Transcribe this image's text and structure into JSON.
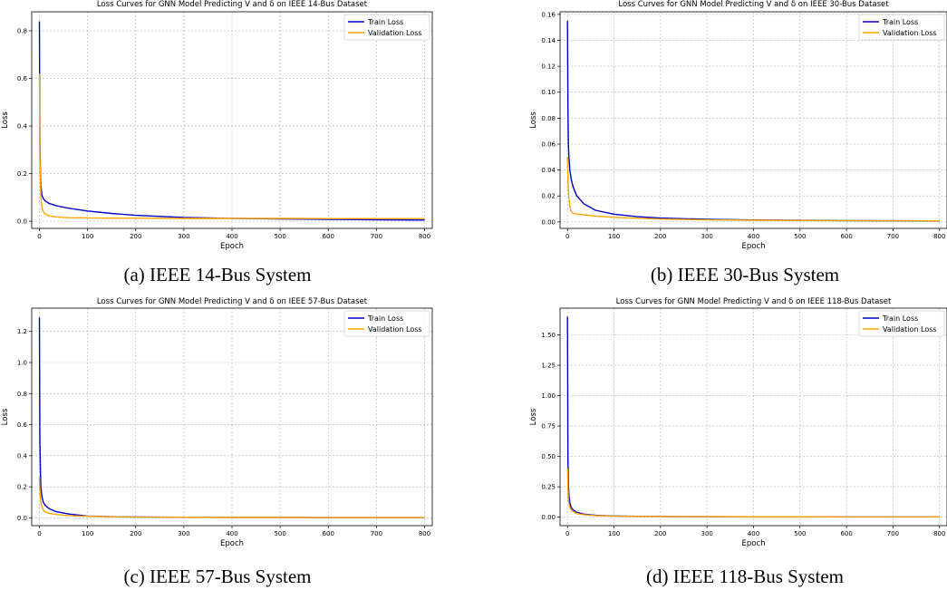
{
  "figure": {
    "panels": [
      {
        "caption": "(a) IEEE 14-Bus System",
        "chart_data": {
          "type": "line",
          "title": "Loss Curves for GNN Model Predicting V and δ on IEEE 14-Bus Dataset",
          "xlabel": "Epoch",
          "ylabel": "Loss",
          "xlim": [
            -16,
            816
          ],
          "ylim": [
            -0.03,
            0.88
          ],
          "xticks": [
            0,
            100,
            200,
            300,
            400,
            500,
            600,
            700,
            800
          ],
          "yticks": [
            0.0,
            0.2,
            0.4,
            0.6,
            0.8
          ],
          "ytick_labels": [
            "0.0",
            "0.2",
            "0.4",
            "0.6",
            "0.8"
          ],
          "grid": true,
          "legend_position": "top-right",
          "x": [
            0,
            1,
            2,
            3,
            5,
            8,
            12,
            20,
            35,
            60,
            100,
            150,
            200,
            300,
            400,
            500,
            600,
            700,
            800
          ],
          "series": [
            {
              "name": "Train Loss",
              "color": "#0000cc",
              "values": [
                0.84,
                0.35,
                0.2,
                0.15,
                0.11,
                0.095,
                0.085,
                0.075,
                0.065,
                0.055,
                0.043,
                0.033,
                0.025,
                0.016,
                0.012,
                0.01,
                0.008,
                0.006,
                0.005
              ]
            },
            {
              "name": "Validation Loss",
              "color": "#ffa500",
              "values": [
                0.62,
                0.28,
                0.16,
                0.1,
                0.06,
                0.04,
                0.03,
                0.022,
                0.018,
                0.015,
                0.014,
                0.013,
                0.013,
                0.012,
                0.012,
                0.012,
                0.011,
                0.011,
                0.011
              ]
            }
          ]
        }
      },
      {
        "caption": "(b) IEEE 30-Bus System",
        "chart_data": {
          "type": "line",
          "title": "Loss Curves for GNN Model Predicting V and δ on IEEE 30-Bus Dataset",
          "xlabel": "Epoch",
          "ylabel": "Loss",
          "xlim": [
            -16,
            816
          ],
          "ylim": [
            -0.005,
            0.162
          ],
          "xticks": [
            0,
            100,
            200,
            300,
            400,
            500,
            600,
            700,
            800
          ],
          "yticks": [
            0.0,
            0.02,
            0.04,
            0.06,
            0.08,
            0.1,
            0.12,
            0.14,
            0.16
          ],
          "ytick_labels": [
            "0.00",
            "0.02",
            "0.04",
            "0.06",
            "0.08",
            "0.10",
            "0.12",
            "0.14",
            "0.16"
          ],
          "grid": true,
          "legend_position": "top-right",
          "x": [
            0,
            1,
            2,
            3,
            5,
            8,
            12,
            20,
            35,
            60,
            100,
            150,
            200,
            300,
            400,
            500,
            600,
            700,
            800
          ],
          "series": [
            {
              "name": "Train Loss",
              "color": "#0000cc",
              "values": [
                0.155,
                0.09,
                0.06,
                0.05,
                0.04,
                0.033,
                0.027,
                0.02,
                0.014,
                0.009,
                0.006,
                0.004,
                0.003,
                0.002,
                0.0015,
                0.0012,
                0.001,
                0.0009,
                0.0008
              ]
            },
            {
              "name": "Validation Loss",
              "color": "#ffa500",
              "values": [
                0.05,
                0.035,
                0.025,
                0.018,
                0.012,
                0.008,
                0.0065,
                0.006,
                0.0055,
                0.0045,
                0.0035,
                0.0028,
                0.0022,
                0.0016,
                0.0013,
                0.0011,
                0.001,
                0.0009,
                0.0008
              ]
            }
          ]
        }
      },
      {
        "caption": "(c) IEEE 57-Bus System",
        "chart_data": {
          "type": "line",
          "title": "Loss Curves for GNN Model Predicting V and δ on IEEE 57-Bus Dataset",
          "xlabel": "Epoch",
          "ylabel": "Loss",
          "xlim": [
            -16,
            816
          ],
          "ylim": [
            -0.05,
            1.35
          ],
          "xticks": [
            0,
            100,
            200,
            300,
            400,
            500,
            600,
            700,
            800
          ],
          "yticks": [
            0.0,
            0.2,
            0.4,
            0.6,
            0.8,
            1.0,
            1.2
          ],
          "ytick_labels": [
            "0.0",
            "0.2",
            "0.4",
            "0.6",
            "0.8",
            "1.0",
            "1.2"
          ],
          "grid": true,
          "legend_position": "top-right",
          "x": [
            0,
            1,
            2,
            3,
            5,
            8,
            12,
            20,
            35,
            60,
            100,
            150,
            200,
            300,
            400,
            500,
            600,
            700,
            800
          ],
          "series": [
            {
              "name": "Train Loss",
              "color": "#0000cc",
              "values": [
                1.29,
                0.5,
                0.3,
                0.2,
                0.14,
                0.1,
                0.08,
                0.06,
                0.04,
                0.025,
                0.012,
                0.008,
                0.006,
                0.004,
                0.003,
                0.003,
                0.002,
                0.002,
                0.002
              ]
            },
            {
              "name": "Validation Loss",
              "color": "#ffa500",
              "values": [
                0.26,
                0.18,
                0.13,
                0.1,
                0.07,
                0.05,
                0.04,
                0.03,
                0.022,
                0.015,
                0.01,
                0.007,
                0.005,
                0.004,
                0.003,
                0.003,
                0.002,
                0.002,
                0.002
              ]
            }
          ]
        }
      },
      {
        "caption": "(d) IEEE 118-Bus System",
        "chart_data": {
          "type": "line",
          "title": "Loss Curves for GNN Model Predicting V and δ on IEEE 118-Bus Dataset",
          "xlabel": "Epoch",
          "ylabel": "Loss",
          "xlim": [
            -16,
            816
          ],
          "ylim": [
            -0.07,
            1.72
          ],
          "xticks": [
            0,
            100,
            200,
            300,
            400,
            500,
            600,
            700,
            800
          ],
          "yticks": [
            0.0,
            0.25,
            0.5,
            0.75,
            1.0,
            1.25,
            1.5
          ],
          "ytick_labels": [
            "0.00",
            "0.25",
            "0.50",
            "0.75",
            "1.00",
            "1.25",
            "1.50"
          ],
          "grid": true,
          "legend_position": "top-right",
          "x": [
            0,
            1,
            2,
            3,
            5,
            8,
            12,
            20,
            35,
            60,
            100,
            150,
            200,
            300,
            400,
            500,
            600,
            700,
            800
          ],
          "series": [
            {
              "name": "Train Loss",
              "color": "#0000cc",
              "values": [
                1.65,
                0.5,
                0.28,
                0.18,
                0.12,
                0.08,
                0.06,
                0.04,
                0.025,
                0.015,
                0.01,
                0.007,
                0.005,
                0.004,
                0.003,
                0.003,
                0.002,
                0.002,
                0.002
              ]
            },
            {
              "name": "Validation Loss",
              "color": "#ffa500",
              "values": [
                0.4,
                0.25,
                0.15,
                0.11,
                0.08,
                0.06,
                0.045,
                0.03,
                0.02,
                0.013,
                0.009,
                0.006,
                0.005,
                0.004,
                0.003,
                0.003,
                0.002,
                0.002,
                0.002
              ]
            }
          ]
        }
      }
    ]
  }
}
